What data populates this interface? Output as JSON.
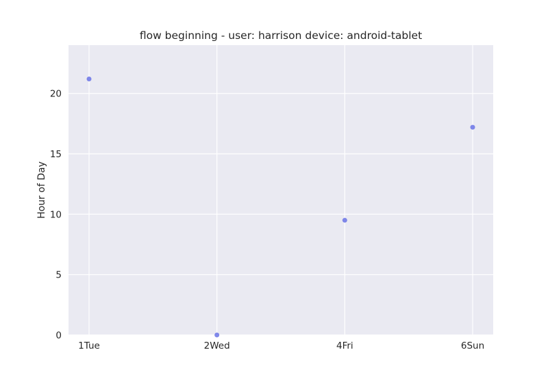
{
  "chart_data": {
    "type": "scatter",
    "title": "flow beginning - user: harrison device: android-tablet",
    "xlabel": "",
    "ylabel": "Hour of Day",
    "categories": [
      "1Tue",
      "2Wed",
      "4Fri",
      "6Sun"
    ],
    "x": [
      "1Tue",
      "2Wed",
      "4Fri",
      "6Sun"
    ],
    "y": [
      21.2,
      0,
      9.5,
      17.2
    ],
    "ylim": [
      0,
      24
    ],
    "yticks": [
      0,
      5,
      10,
      15,
      20
    ],
    "grid": true,
    "legend": "none",
    "colors": {
      "plot_background": "#eaeaf2",
      "grid": "#ffffff",
      "point": "#6a73e6"
    }
  }
}
